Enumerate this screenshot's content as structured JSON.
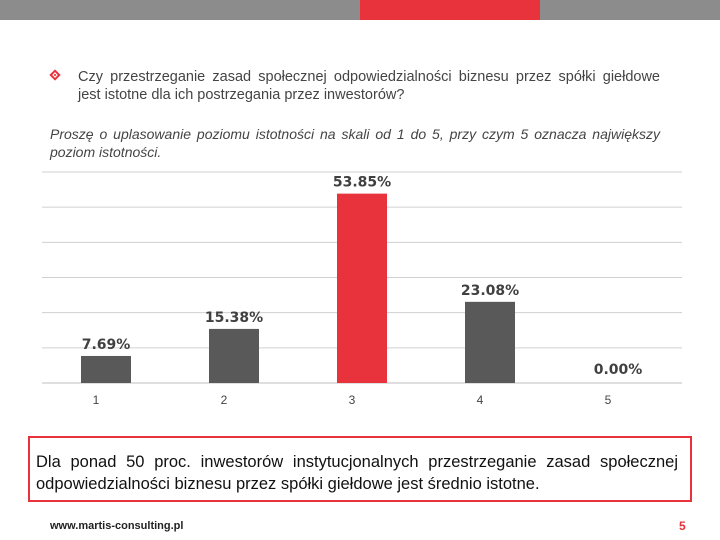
{
  "colors": {
    "accent": "#e8323c",
    "bar": "#595959",
    "topbar": "#8c8c8c"
  },
  "question": "Czy przestrzeganie zasad społecznej odpowiedzialności biznesu przez spółki giełdowe jest istotne dla ich postrzegania przez inwestorów?",
  "instruction": "Proszę o uplasowanie poziomu istotności na skali od 1 do 5, przy czym 5 oznacza największy poziom istotności.",
  "chart_data": {
    "type": "bar",
    "categories": [
      "1",
      "2",
      "3",
      "4",
      "5"
    ],
    "values": [
      7.69,
      15.38,
      53.85,
      23.08,
      0.0
    ],
    "data_labels": [
      "7.69%",
      "15.38%",
      "53.85%",
      "23.08%",
      "0.00%"
    ],
    "highlight_index": 2,
    "ylim": [
      0,
      60
    ],
    "grid": true,
    "title": "",
    "xlabel": "",
    "ylabel": ""
  },
  "conclusion": "Dla ponad 50 proc. inwestorów instytucjonalnych przestrzeganie zasad społecznej odpowiedzialności biznesu przez spółki giełdowe jest średnio istotne.",
  "footer": {
    "url": "www.martis-consulting.pl",
    "page": "5"
  }
}
